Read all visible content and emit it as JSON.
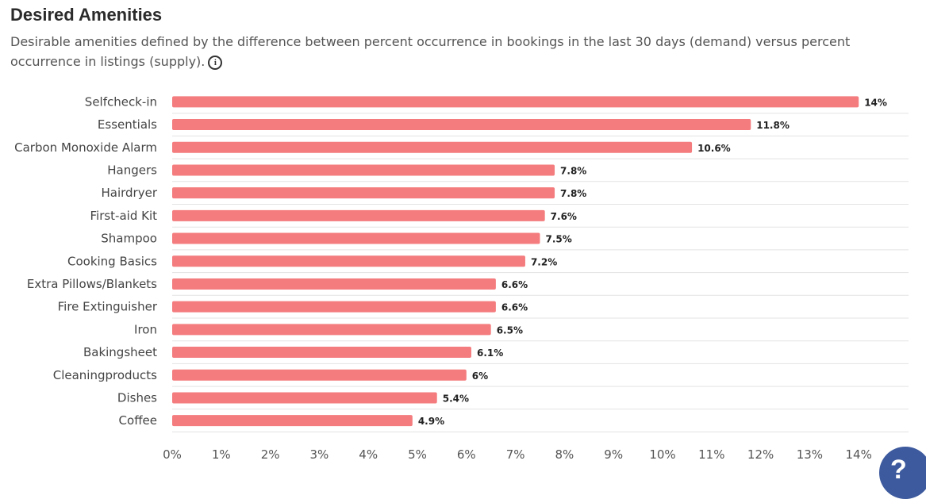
{
  "header": {
    "title": "Desired Amenities",
    "subtitle": "Desirable amenities defined by the difference between percent occurrence in bookings in the last 30 days (demand) versus percent occurrence in listings (supply).",
    "info_icon": "info-circle-icon"
  },
  "help_button": {
    "label": "?",
    "icon": "help-icon"
  },
  "colors": {
    "bar": "#f47c7e",
    "grid": "#e3e3e3"
  },
  "chart_data": {
    "type": "bar",
    "orientation": "horizontal",
    "title": "",
    "xlabel": "",
    "ylabel": "",
    "categories": [
      "Selfcheck-in",
      "Essentials",
      "Carbon Monoxide Alarm",
      "Hangers",
      "Hairdryer",
      "First-aid Kit",
      "Shampoo",
      "Cooking Basics",
      "Extra Pillows/Blankets",
      "Fire Extinguisher",
      "Iron",
      "Bakingsheet",
      "Cleaningproducts",
      "Dishes",
      "Coffee"
    ],
    "values": [
      14,
      11.8,
      10.6,
      7.8,
      7.8,
      7.6,
      7.5,
      7.2,
      6.6,
      6.6,
      6.5,
      6.1,
      6,
      5.4,
      4.9
    ],
    "value_labels": [
      "14%",
      "11.8%",
      "10.6%",
      "7.8%",
      "7.8%",
      "7.6%",
      "7.5%",
      "7.2%",
      "6.6%",
      "6.6%",
      "6.5%",
      "6.1%",
      "6%",
      "5.4%",
      "4.9%"
    ],
    "xticks": [
      "0%",
      "1%",
      "2%",
      "3%",
      "4%",
      "5%",
      "6%",
      "7%",
      "8%",
      "9%",
      "10%",
      "11%",
      "12%",
      "13%",
      "14%"
    ],
    "xlim": [
      0,
      15
    ],
    "grid": "horizontal"
  }
}
